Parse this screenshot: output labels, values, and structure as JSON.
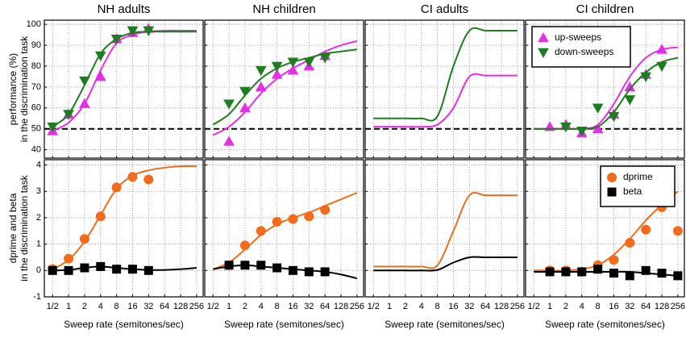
{
  "chart_data": [
    {
      "type": "line",
      "title": "NH adults",
      "ylabel": [
        "performance (%)",
        "in the discrimination task"
      ],
      "grid": true,
      "hline": 50,
      "x": [
        0.5,
        1,
        2,
        4,
        8,
        16,
        32,
        64,
        128,
        256
      ],
      "xlim": [
        0.35,
        340
      ],
      "xticks": [
        0.5,
        1,
        2,
        4,
        8,
        16,
        32,
        64,
        128,
        256
      ],
      "xscale": "log",
      "ylim": [
        36,
        102
      ],
      "yticks": [
        40,
        50,
        60,
        70,
        80,
        90,
        100
      ],
      "series": [
        {
          "name": "up-sweeps",
          "color": "#e62ee6",
          "marker": "triangle-up",
          "values": [
            49,
            57,
            62,
            75,
            93,
            96,
            98,
            null,
            null,
            null
          ],
          "fit": [
            49,
            53,
            62,
            78,
            91,
            95,
            96.5,
            97,
            97,
            97
          ]
        },
        {
          "name": "down-sweeps",
          "color": "#1e7d1e",
          "marker": "triangle-down",
          "values": [
            51,
            57,
            73,
            85,
            93,
            97,
            97,
            null,
            null,
            null
          ],
          "fit": [
            51,
            57,
            71,
            86,
            93,
            96,
            96.5,
            96.5,
            96.5,
            96.5
          ]
        }
      ]
    },
    {
      "type": "line",
      "title": "NH children",
      "grid": true,
      "hline": 50,
      "x": [
        0.5,
        1,
        2,
        4,
        8,
        16,
        32,
        64,
        128,
        256
      ],
      "xlim": [
        0.35,
        340
      ],
      "xticks": [
        0.5,
        1,
        2,
        4,
        8,
        16,
        32,
        64,
        128,
        256
      ],
      "xscale": "log",
      "ylim": [
        36,
        102
      ],
      "yticks": [
        40,
        50,
        60,
        70,
        80,
        90,
        100
      ],
      "series": [
        {
          "name": "up-sweeps",
          "color": "#e62ee6",
          "marker": "triangle-up",
          "values": [
            null,
            44,
            60,
            70,
            76,
            78,
            80,
            85,
            null,
            null
          ],
          "fit": [
            47,
            51,
            58,
            67,
            74,
            79,
            83,
            87,
            90,
            92
          ]
        },
        {
          "name": "down-sweeps",
          "color": "#1e7d1e",
          "marker": "triangle-down",
          "values": [
            null,
            62,
            68,
            78,
            80,
            82,
            82,
            84,
            null,
            null
          ],
          "fit": [
            52,
            57,
            66,
            74,
            79,
            82,
            84,
            86,
            87,
            88
          ]
        }
      ]
    },
    {
      "type": "line",
      "title": "CI adults",
      "grid": true,
      "hline": 50,
      "x": [
        0.5,
        1,
        2,
        4,
        8,
        16,
        32,
        64,
        128,
        256
      ],
      "xlim": [
        0.35,
        340
      ],
      "xticks": [
        0.5,
        1,
        2,
        4,
        8,
        16,
        32,
        64,
        128,
        256
      ],
      "xscale": "log",
      "ylim": [
        36,
        102
      ],
      "yticks": [
        40,
        50,
        60,
        70,
        80,
        90,
        100
      ],
      "series": [
        {
          "name": "up-sweeps",
          "color": "#e62ee6",
          "marker": "triangle-up",
          "values": [
            null,
            null,
            null,
            null,
            null,
            null,
            null,
            null,
            null,
            null
          ],
          "fit": [
            51,
            51,
            51,
            51,
            52,
            60,
            75,
            75.5,
            75.5,
            75.5
          ]
        },
        {
          "name": "down-sweeps",
          "color": "#1e7d1e",
          "marker": "triangle-down",
          "values": [
            null,
            null,
            null,
            null,
            null,
            null,
            null,
            null,
            null,
            null
          ],
          "fit": [
            55,
            55,
            55,
            55,
            56,
            80,
            97,
            97,
            97,
            97
          ]
        }
      ]
    },
    {
      "type": "line",
      "title": "CI children",
      "grid": true,
      "hline": 50,
      "legend": "upper left",
      "x": [
        0.5,
        1,
        2,
        4,
        8,
        16,
        32,
        64,
        128,
        256
      ],
      "xlim": [
        0.35,
        340
      ],
      "xticks": [
        0.5,
        1,
        2,
        4,
        8,
        16,
        32,
        64,
        128,
        256
      ],
      "xscale": "log",
      "ylim": [
        36,
        102
      ],
      "yticks": [
        40,
        50,
        60,
        70,
        80,
        90,
        100
      ],
      "series": [
        {
          "name": "up-sweeps",
          "color": "#e62ee6",
          "marker": "triangle-up",
          "values": [
            null,
            51,
            52,
            48,
            50,
            57,
            70,
            76,
            88,
            null
          ],
          "fit": [
            50,
            50,
            50,
            50,
            52,
            62,
            75,
            84,
            88,
            89
          ]
        },
        {
          "name": "down-sweeps",
          "color": "#1e7d1e",
          "marker": "triangle-down",
          "values": [
            null,
            null,
            51,
            49,
            60,
            56,
            64,
            75,
            80,
            null
          ],
          "fit": [
            50,
            50,
            50,
            50,
            51,
            58,
            69,
            77,
            82,
            84
          ]
        }
      ]
    },
    {
      "type": "line",
      "xlabel": "Sweep rate (semitones/sec)",
      "ylabel": [
        "dprime and beta",
        "in the discrimination task"
      ],
      "grid": true,
      "x": [
        0.5,
        1,
        2,
        4,
        8,
        16,
        32,
        64,
        128,
        256
      ],
      "xlim": [
        0.35,
        340
      ],
      "xscale": "log",
      "xticks": [
        {
          "value": 0.5,
          "label": "1/2"
        },
        1,
        2,
        4,
        8,
        16,
        32,
        64,
        128,
        256
      ],
      "ylim": [
        -1,
        4.2
      ],
      "yticks": [
        -1,
        0,
        1,
        2,
        3,
        4
      ],
      "series": [
        {
          "name": "dprime",
          "color": "#f26a1b",
          "marker": "circle",
          "values": [
            0.05,
            0.45,
            1.2,
            2.05,
            3.15,
            3.55,
            3.45,
            null,
            null,
            null
          ],
          "fit": [
            0.05,
            0.4,
            1.1,
            2.1,
            3.1,
            3.6,
            3.8,
            3.9,
            3.95,
            3.95
          ]
        },
        {
          "name": "beta",
          "color": "#000000",
          "marker": "square",
          "values": [
            0,
            0,
            0.1,
            0.15,
            0.05,
            0.05,
            0,
            null,
            null,
            null
          ],
          "fit": [
            0,
            0.02,
            0.1,
            0.15,
            0.1,
            0.05,
            0.02,
            0.02,
            0.05,
            0.1
          ]
        }
      ]
    },
    {
      "type": "line",
      "xlabel": "Sweep rate (semitones/sec)",
      "grid": true,
      "x": [
        0.5,
        1,
        2,
        4,
        8,
        16,
        32,
        64,
        128,
        256
      ],
      "xlim": [
        0.35,
        340
      ],
      "xscale": "log",
      "xticks": [
        {
          "value": 0.5,
          "label": "1/2"
        },
        1,
        2,
        4,
        8,
        16,
        32,
        64,
        128,
        256
      ],
      "ylim": [
        -1,
        4.2
      ],
      "yticks": [
        -1,
        0,
        1,
        2,
        3,
        4
      ],
      "series": [
        {
          "name": "dprime",
          "color": "#f26a1b",
          "marker": "circle",
          "values": [
            null,
            0.2,
            0.95,
            1.5,
            1.85,
            1.95,
            2.05,
            2.3,
            null,
            null
          ],
          "fit": [
            0.05,
            0.3,
            0.8,
            1.35,
            1.75,
            2.0,
            2.2,
            2.45,
            2.7,
            2.95
          ]
        },
        {
          "name": "beta",
          "color": "#000000",
          "marker": "square",
          "values": [
            null,
            0.2,
            0.2,
            0.2,
            0.1,
            0,
            -0.05,
            -0.05,
            null,
            null
          ],
          "fit": [
            0.05,
            0.15,
            0.2,
            0.15,
            0.1,
            0.05,
            0,
            -0.05,
            -0.15,
            -0.3
          ]
        }
      ]
    },
    {
      "type": "line",
      "xlabel": "Sweep rate (semitones/sec)",
      "grid": true,
      "x": [
        0.5,
        1,
        2,
        4,
        8,
        16,
        32,
        64,
        128,
        256
      ],
      "xlim": [
        0.35,
        340
      ],
      "xscale": "log",
      "xticks": [
        {
          "value": 0.5,
          "label": "1/2"
        },
        1,
        2,
        4,
        8,
        16,
        32,
        64,
        128,
        256
      ],
      "ylim": [
        -1,
        4.2
      ],
      "yticks": [
        -1,
        0,
        1,
        2,
        3,
        4
      ],
      "series": [
        {
          "name": "dprime",
          "color": "#f26a1b",
          "marker": "circle",
          "values": [
            null,
            null,
            null,
            null,
            null,
            null,
            null,
            null,
            null,
            null
          ],
          "fit": [
            0.15,
            0.15,
            0.15,
            0.15,
            0.2,
            1.5,
            2.85,
            2.85,
            2.85,
            2.85
          ]
        },
        {
          "name": "beta",
          "color": "#000000",
          "marker": "square",
          "values": [
            null,
            null,
            null,
            null,
            null,
            null,
            null,
            null,
            null,
            null
          ],
          "fit": [
            0,
            0,
            0,
            0,
            0.02,
            0.3,
            0.5,
            0.5,
            0.5,
            0.5
          ]
        }
      ]
    },
    {
      "type": "line",
      "xlabel": "Sweep rate (semitones/sec)",
      "grid": true,
      "legend": "upper right",
      "x": [
        0.5,
        1,
        2,
        4,
        8,
        16,
        32,
        64,
        128,
        256
      ],
      "xlim": [
        0.35,
        340
      ],
      "xscale": "log",
      "xticks": [
        {
          "value": 0.5,
          "label": "1/2"
        },
        1,
        2,
        4,
        8,
        16,
        32,
        64,
        128,
        256
      ],
      "ylim": [
        -1,
        4.2
      ],
      "yticks": [
        -1,
        0,
        1,
        2,
        3,
        4
      ],
      "series": [
        {
          "name": "dprime",
          "color": "#f26a1b",
          "marker": "circle",
          "values": [
            null,
            0,
            0,
            -0.05,
            0.2,
            0.4,
            1.05,
            1.55,
            2.4,
            1.5
          ],
          "fit": [
            0,
            0,
            0,
            0.05,
            0.2,
            0.6,
            1.2,
            1.9,
            2.5,
            3.0
          ]
        },
        {
          "name": "beta",
          "color": "#000000",
          "marker": "square",
          "values": [
            null,
            -0.05,
            -0.05,
            -0.05,
            0.05,
            -0.1,
            -0.2,
            0,
            -0.1,
            -0.2
          ],
          "fit": [
            -0.05,
            -0.05,
            -0.05,
            -0.05,
            -0.05,
            -0.05,
            -0.05,
            -0.1,
            -0.15,
            -0.2
          ]
        }
      ]
    }
  ]
}
